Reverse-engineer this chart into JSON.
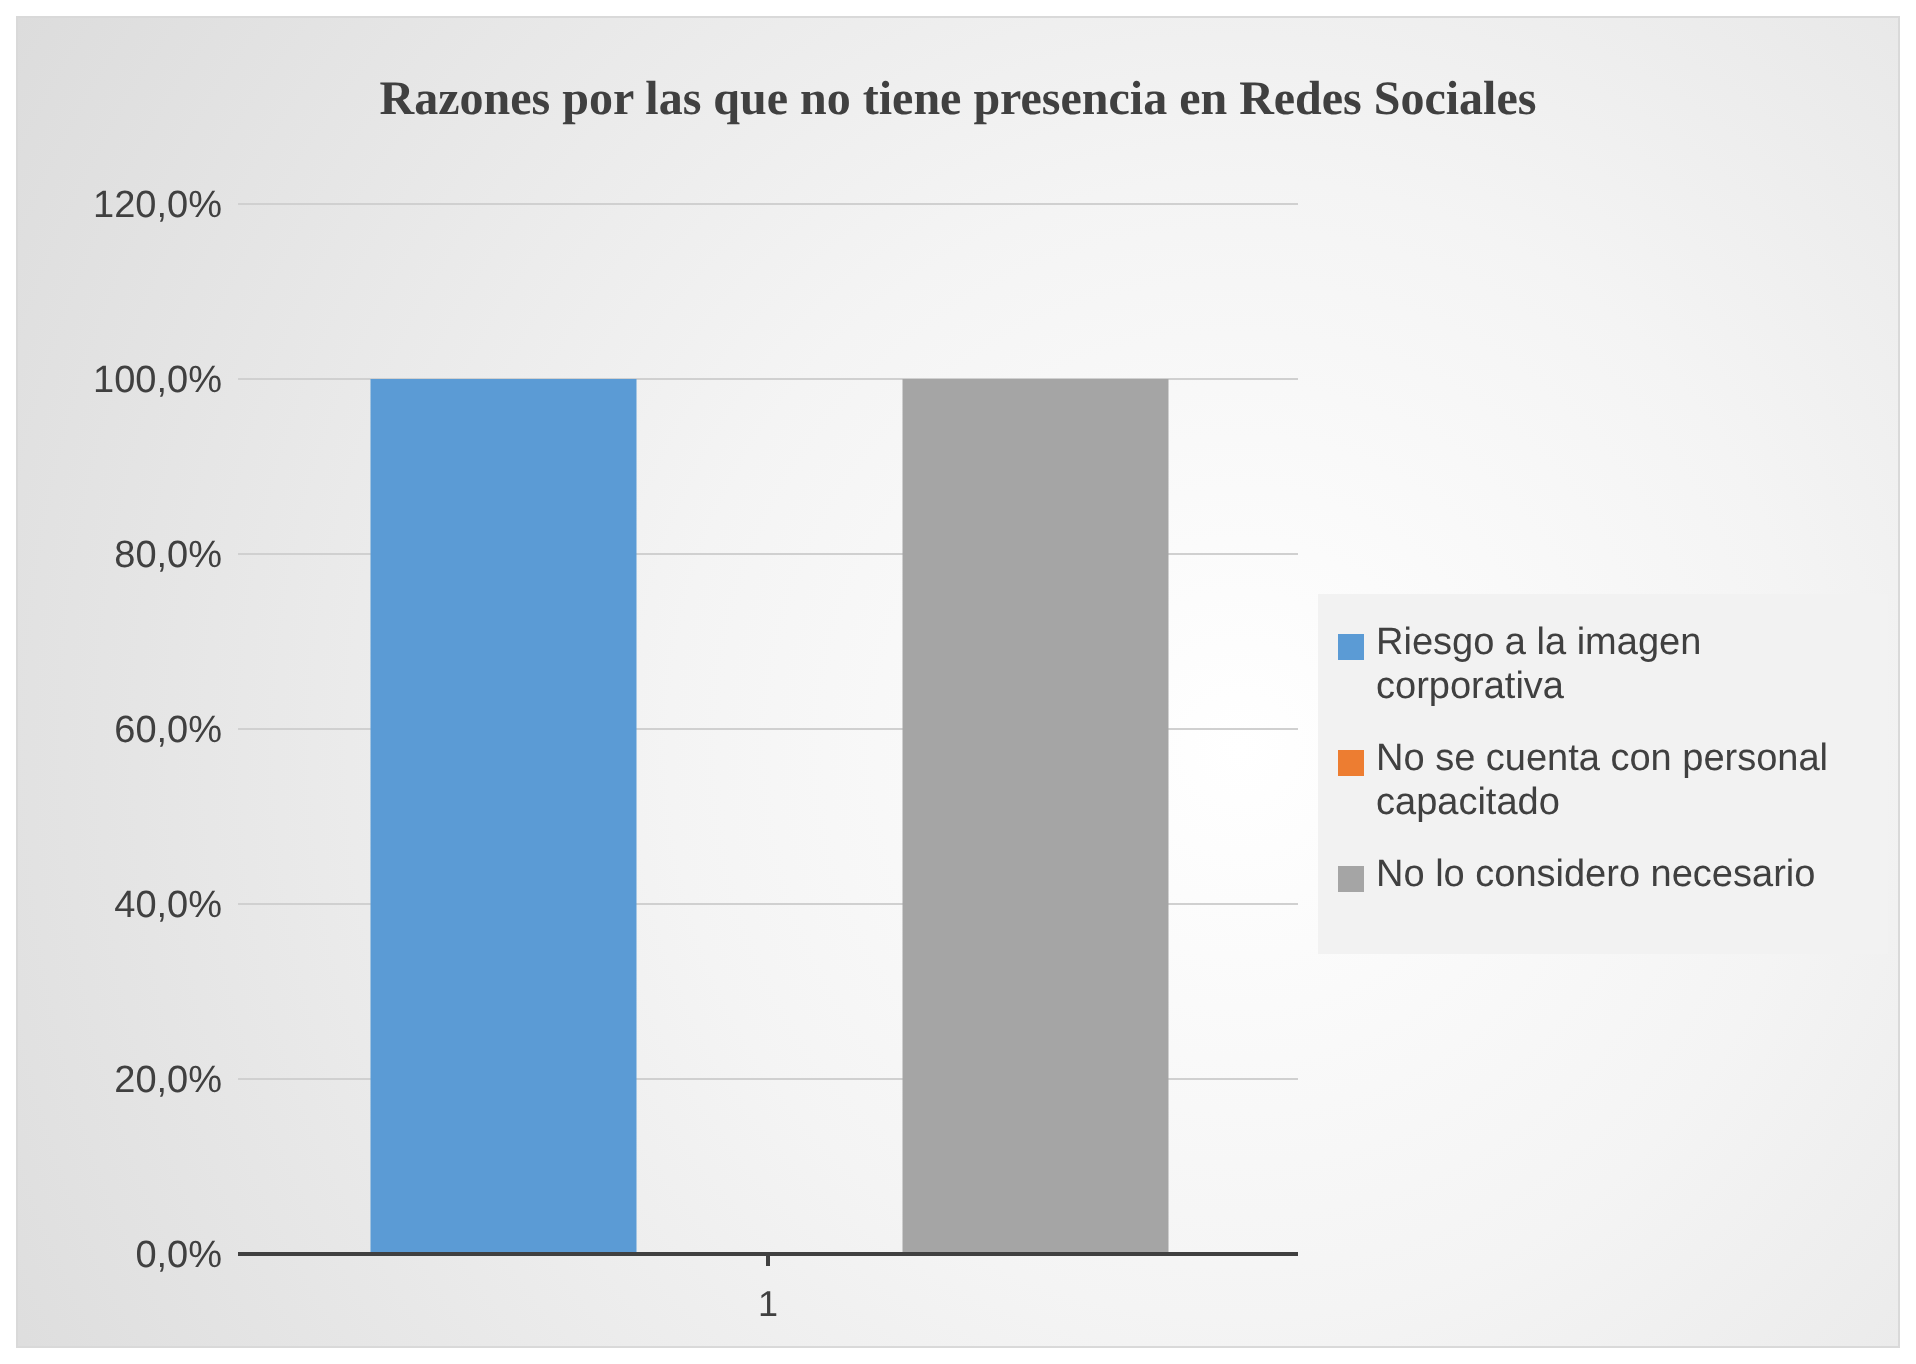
{
  "chart_data": {
    "type": "bar",
    "title": "Razones por las que no tiene presencia en Redes Sociales",
    "categories": [
      "1"
    ],
    "series": [
      {
        "name": "Riesgo a la imagen corporativa",
        "color": "#5b9bd5",
        "values": [
          100
        ]
      },
      {
        "name": "No se cuenta con personal capacitado",
        "color": "#ed7d31",
        "values": [
          0
        ]
      },
      {
        "name": "No lo considero necesario",
        "color": "#a5a5a5",
        "values": [
          100
        ]
      }
    ],
    "ylim": [
      0,
      120
    ],
    "yticks": [
      {
        "value": 0,
        "label": "0,0%"
      },
      {
        "value": 20,
        "label": "20,0%"
      },
      {
        "value": 40,
        "label": "40,0%"
      },
      {
        "value": 60,
        "label": "60,0%"
      },
      {
        "value": 80,
        "label": "80,0%"
      },
      {
        "value": 100,
        "label": "100,0%"
      },
      {
        "value": 120,
        "label": "120,0%"
      }
    ],
    "grid": "y",
    "legend": "right"
  }
}
